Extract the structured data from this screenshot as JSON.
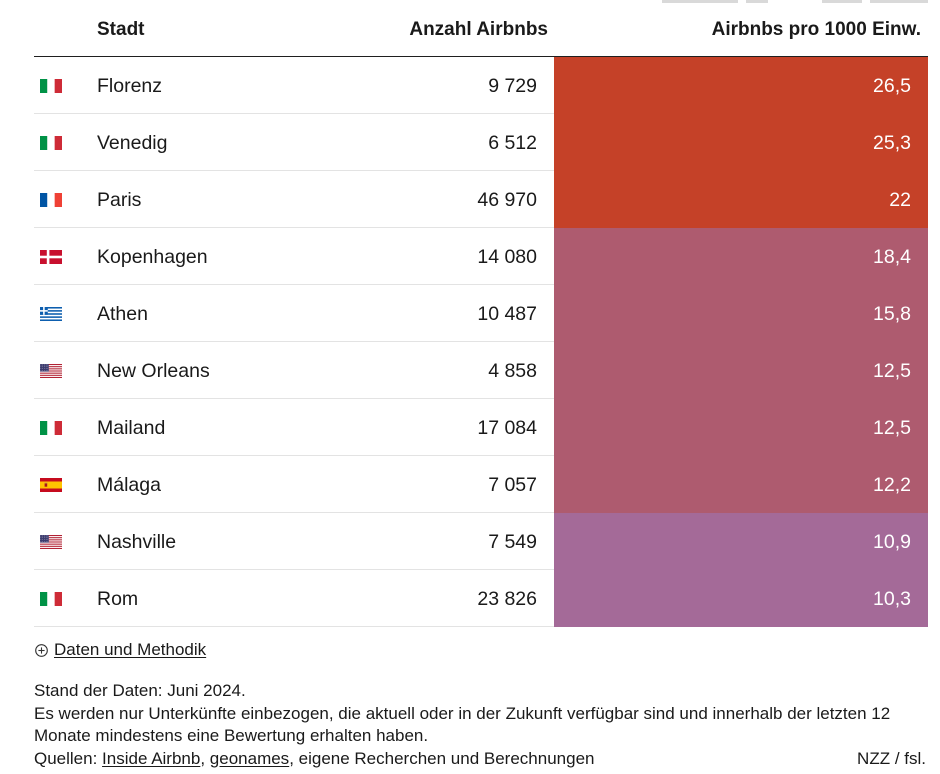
{
  "chart_data": {
    "type": "table",
    "columns": [
      "Stadt",
      "Anzahl Airbnbs",
      "Airbnbs pro 1000 Einw."
    ],
    "rows": [
      {
        "flag": "flag-italy",
        "city": "Florenz",
        "count": "9 729",
        "per_1000": "26,5",
        "color": "#c54128"
      },
      {
        "flag": "flag-italy",
        "city": "Venedig",
        "count": "6 512",
        "per_1000": "25,3",
        "color": "#c54128"
      },
      {
        "flag": "flag-france",
        "city": "Paris",
        "count": "46 970",
        "per_1000": "22",
        "color": "#c54128"
      },
      {
        "flag": "flag-denmark",
        "city": "Kopenhagen",
        "count": "14 080",
        "per_1000": "18,4",
        "color": "#ae5b6f"
      },
      {
        "flag": "flag-greece",
        "city": "Athen",
        "count": "10 487",
        "per_1000": "15,8",
        "color": "#ae5b6f"
      },
      {
        "flag": "flag-usa",
        "city": "New Orleans",
        "count": "4 858",
        "per_1000": "12,5",
        "color": "#ae5b6f"
      },
      {
        "flag": "flag-italy",
        "city": "Mailand",
        "count": "17 084",
        "per_1000": "12,5",
        "color": "#ae5b6f"
      },
      {
        "flag": "flag-spain",
        "city": "Málaga",
        "count": "7 057",
        "per_1000": "12,2",
        "color": "#ae5b6f"
      },
      {
        "flag": "flag-usa",
        "city": "Nashville",
        "count": "7 549",
        "per_1000": "10,9",
        "color": "#a46a98"
      },
      {
        "flag": "flag-italy",
        "city": "Rom",
        "count": "23 826",
        "per_1000": "10,3",
        "color": "#a46a98"
      }
    ]
  },
  "footer": {
    "methodology_toggle": {
      "icon": "plus-circle-icon",
      "label": "Daten und Methodik"
    },
    "data_date": "Stand der Daten: Juni 2024.",
    "note_lines": [
      "Es werden nur Unterkünfte einbezogen, die aktuell oder in der Zukunft verfügbar sind und innerhalb der letzten 12",
      "Monate mindestens eine Bewertung erhalten haben."
    ],
    "sources": {
      "prefix": "Quellen: ",
      "links": [
        "Inside Airbnb",
        "geonames"
      ],
      "separator": ", ",
      "suffix": ", eigene Recherchen und Berechnungen"
    },
    "credit": "NZZ / fsl."
  }
}
